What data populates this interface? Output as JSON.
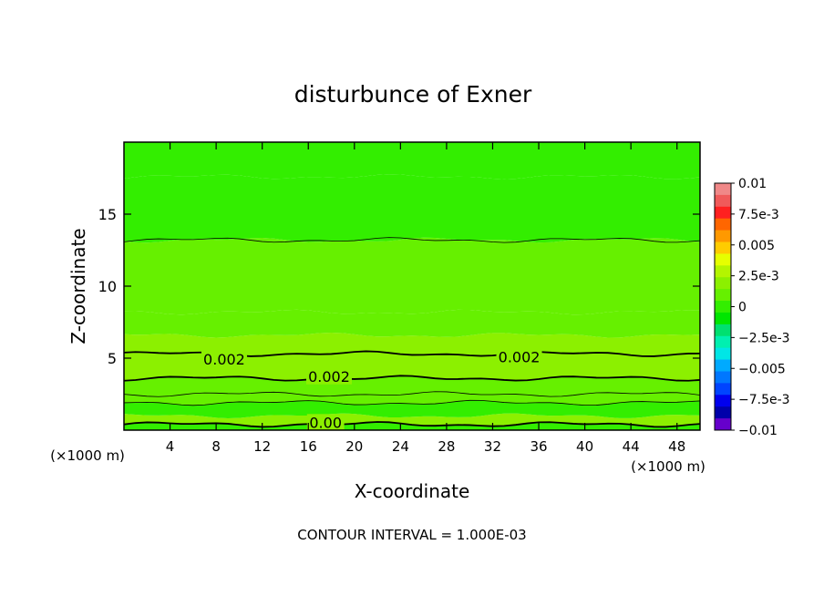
{
  "chart_data": {
    "type": "contour",
    "title": "disturbunce of Exner",
    "xlabel": "X-coordinate",
    "ylabel": "Z-coordinate",
    "x_unit": "(×1000 m)",
    "y_unit": "(×1000 m)",
    "xlim": [
      0,
      50
    ],
    "ylim": [
      0,
      20
    ],
    "x_ticks": [
      4,
      8,
      12,
      16,
      20,
      24,
      28,
      32,
      36,
      40,
      44,
      48
    ],
    "y_ticks": [
      5,
      10,
      15
    ],
    "contour_interval_text": "CONTOUR INTERVAL = 1.000E-03",
    "colorbar": {
      "labels": [
        "0.01",
        "7.5e-3",
        "0.005",
        "2.5e-3",
        "0",
        "−2.5e-3",
        "−0.005",
        "−7.5e-3",
        "−0.01"
      ],
      "levels": [
        0.01,
        0.0075,
        0.005,
        0.0025,
        0,
        -0.0025,
        -0.005,
        -0.0075,
        -0.01
      ],
      "colors": [
        "#f08888",
        "#f05a5a",
        "#ff2020",
        "#ff6600",
        "#ff9900",
        "#ffcc00",
        "#e6ff00",
        "#b4f500",
        "#8cf000",
        "#66f000",
        "#33ee00",
        "#00e600",
        "#00e070",
        "#00f0b0",
        "#00e6e6",
        "#00aaff",
        "#0077ff",
        "#0044ff",
        "#0000ee",
        "#0000aa",
        "#6600cc"
      ]
    },
    "contour_labels": [
      {
        "text": "0.002",
        "x": 8.7,
        "z": 4.95
      },
      {
        "text": "0.002",
        "x": 17.8,
        "z": 3.75
      },
      {
        "text": "0.002",
        "x": 34.3,
        "z": 5.1
      },
      {
        "text": "0.00",
        "x": 17.5,
        "z": 0.55
      }
    ],
    "bands": [
      {
        "z0": 0.0,
        "z1": 0.4,
        "value": 0.0
      },
      {
        "z0": 0.4,
        "z1": 1.0,
        "value": 0.0025
      },
      {
        "z0": 1.0,
        "z1": 1.9,
        "value": 0.0005
      },
      {
        "z0": 1.9,
        "z1": 2.5,
        "value": 0.001
      },
      {
        "z0": 2.5,
        "z1": 3.6,
        "value": 0.0015
      },
      {
        "z0": 3.6,
        "z1": 5.3,
        "value": 0.0025
      },
      {
        "z0": 5.3,
        "z1": 6.6,
        "value": 0.0018
      },
      {
        "z0": 6.6,
        "z1": 8.2,
        "value": 0.0012
      },
      {
        "z0": 8.2,
        "z1": 13.2,
        "value": 0.0008
      },
      {
        "z0": 13.2,
        "z1": 17.6,
        "value": 0.0004
      },
      {
        "z0": 17.6,
        "z1": 20.0,
        "value": 0.0
      }
    ]
  }
}
